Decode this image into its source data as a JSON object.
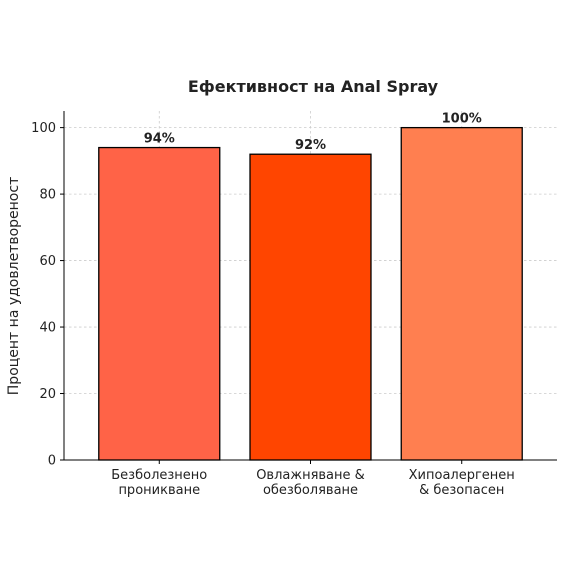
{
  "chart_data": {
    "type": "bar",
    "title": "Ефективност на Anal Spray",
    "ylabel": "Процент на удовлетвореност",
    "xlabel": "",
    "ylim": [
      0,
      105
    ],
    "yticks": [
      0,
      20,
      40,
      60,
      80,
      100
    ],
    "grid": true,
    "categories": [
      [
        "Безболезнено",
        "проникване"
      ],
      [
        "Овлажняване &",
        "обезболяване"
      ],
      [
        "Хипоалергенен",
        "& безопасен"
      ]
    ],
    "values": [
      94,
      92,
      100
    ],
    "data_labels": [
      "94%",
      "92%",
      "100%"
    ],
    "colors": [
      "#FF6347",
      "#FF4500",
      "#FF7F50"
    ]
  }
}
